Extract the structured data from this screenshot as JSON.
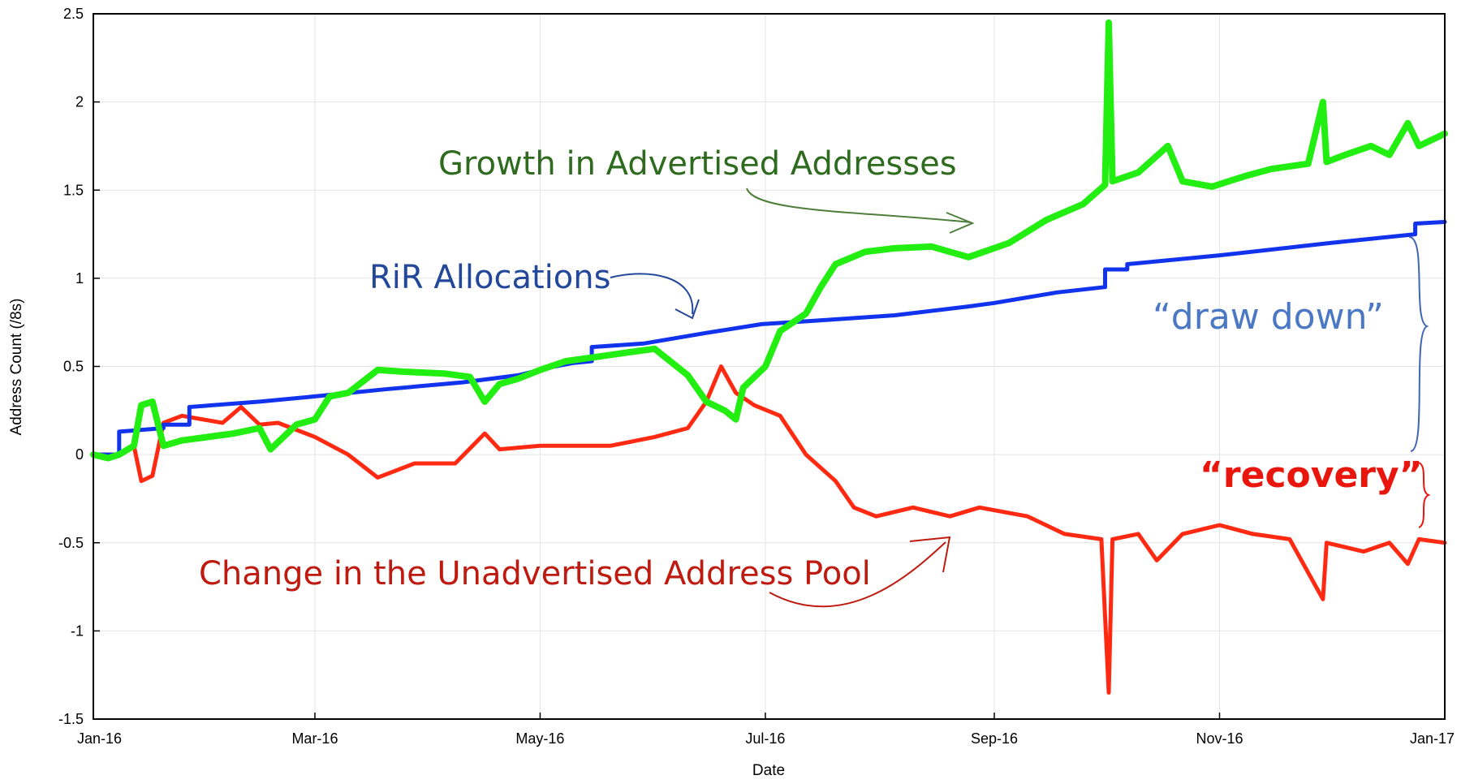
{
  "chart_data": {
    "type": "line",
    "title": "",
    "xlabel": "Date",
    "ylabel": "Address Count (/8s)",
    "x_ticks": [
      "Jan-16",
      "Mar-16",
      "May-16",
      "Jul-16",
      "Sep-16",
      "Nov-16",
      "Jan-17"
    ],
    "y_ticks": [
      "2.5",
      "2",
      "1.5",
      "1",
      "0.5",
      "0",
      "-0.5",
      "-1",
      "-1.5"
    ],
    "ylim": [
      -1.5,
      2.5
    ],
    "xlim": [
      "2016-01-01",
      "2017-01-01"
    ],
    "grid": true,
    "series": [
      {
        "name": "RIR Allocations",
        "color": "#1133ee",
        "points": [
          [
            "2016-01-01",
            0.0
          ],
          [
            "2016-01-08",
            0.0
          ],
          [
            "2016-01-08",
            0.13
          ],
          [
            "2016-01-20",
            0.15
          ],
          [
            "2016-01-20",
            0.17
          ],
          [
            "2016-01-27",
            0.17
          ],
          [
            "2016-01-27",
            0.27
          ],
          [
            "2016-02-15",
            0.3
          ],
          [
            "2016-03-01",
            0.33
          ],
          [
            "2016-03-20",
            0.37
          ],
          [
            "2016-04-10",
            0.41
          ],
          [
            "2016-04-25",
            0.45
          ],
          [
            "2016-05-05",
            0.5
          ],
          [
            "2016-05-10",
            0.52
          ],
          [
            "2016-05-15",
            0.53
          ],
          [
            "2016-05-15",
            0.61
          ],
          [
            "2016-05-29",
            0.63
          ],
          [
            "2016-06-15",
            0.69
          ],
          [
            "2016-06-30",
            0.74
          ],
          [
            "2016-07-15",
            0.76
          ],
          [
            "2016-08-05",
            0.79
          ],
          [
            "2016-08-25",
            0.84
          ],
          [
            "2016-09-01",
            0.86
          ],
          [
            "2016-09-18",
            0.92
          ],
          [
            "2016-10-01",
            0.95
          ],
          [
            "2016-10-01",
            1.05
          ],
          [
            "2016-10-07",
            1.05
          ],
          [
            "2016-10-07",
            1.08
          ],
          [
            "2016-11-01",
            1.13
          ],
          [
            "2016-12-01",
            1.2
          ],
          [
            "2016-12-24",
            1.25
          ],
          [
            "2016-12-24",
            1.31
          ],
          [
            "2017-01-01",
            1.32
          ]
        ]
      },
      {
        "name": "Growth in Advertised Addresses",
        "color": "#22ee11",
        "points": [
          [
            "2016-01-01",
            0.0
          ],
          [
            "2016-01-05",
            -0.02
          ],
          [
            "2016-01-08",
            0.0
          ],
          [
            "2016-01-12",
            0.05
          ],
          [
            "2016-01-14",
            0.28
          ],
          [
            "2016-01-17",
            0.3
          ],
          [
            "2016-01-20",
            0.05
          ],
          [
            "2016-01-25",
            0.08
          ],
          [
            "2016-02-01",
            0.1
          ],
          [
            "2016-02-08",
            0.12
          ],
          [
            "2016-02-15",
            0.15
          ],
          [
            "2016-02-18",
            0.03
          ],
          [
            "2016-02-25",
            0.17
          ],
          [
            "2016-03-01",
            0.2
          ],
          [
            "2016-03-05",
            0.33
          ],
          [
            "2016-03-10",
            0.35
          ],
          [
            "2016-03-18",
            0.48
          ],
          [
            "2016-03-25",
            0.47
          ],
          [
            "2016-04-05",
            0.46
          ],
          [
            "2016-04-12",
            0.44
          ],
          [
            "2016-04-16",
            0.3
          ],
          [
            "2016-04-20",
            0.4
          ],
          [
            "2016-04-25",
            0.43
          ],
          [
            "2016-05-01",
            0.48
          ],
          [
            "2016-05-08",
            0.53
          ],
          [
            "2016-05-15",
            0.55
          ],
          [
            "2016-05-25",
            0.58
          ],
          [
            "2016-06-01",
            0.6
          ],
          [
            "2016-06-10",
            0.45
          ],
          [
            "2016-06-15",
            0.3
          ],
          [
            "2016-06-20",
            0.25
          ],
          [
            "2016-06-23",
            0.2
          ],
          [
            "2016-06-25",
            0.38
          ],
          [
            "2016-07-01",
            0.5
          ],
          [
            "2016-07-05",
            0.7
          ],
          [
            "2016-07-12",
            0.8
          ],
          [
            "2016-07-16",
            0.95
          ],
          [
            "2016-07-20",
            1.08
          ],
          [
            "2016-07-28",
            1.15
          ],
          [
            "2016-08-05",
            1.17
          ],
          [
            "2016-08-15",
            1.18
          ],
          [
            "2016-08-25",
            1.12
          ],
          [
            "2016-09-05",
            1.2
          ],
          [
            "2016-09-15",
            1.33
          ],
          [
            "2016-09-25",
            1.42
          ],
          [
            "2016-10-01",
            1.53
          ],
          [
            "2016-10-02",
            2.45
          ],
          [
            "2016-10-03",
            1.55
          ],
          [
            "2016-10-10",
            1.6
          ],
          [
            "2016-10-18",
            1.75
          ],
          [
            "2016-10-22",
            1.55
          ],
          [
            "2016-10-30",
            1.52
          ],
          [
            "2016-11-08",
            1.58
          ],
          [
            "2016-11-15",
            1.62
          ],
          [
            "2016-11-25",
            1.65
          ],
          [
            "2016-11-29",
            2.0
          ],
          [
            "2016-11-30",
            1.66
          ],
          [
            "2016-12-05",
            1.7
          ],
          [
            "2016-12-12",
            1.75
          ],
          [
            "2016-12-17",
            1.7
          ],
          [
            "2016-12-22",
            1.88
          ],
          [
            "2016-12-25",
            1.75
          ],
          [
            "2017-01-01",
            1.82
          ]
        ]
      },
      {
        "name": "Change in the Unadvertised Address Pool",
        "color": "#ff2a11",
        "points": [
          [
            "2016-01-01",
            0.0
          ],
          [
            "2016-01-08",
            0.0
          ],
          [
            "2016-01-12",
            0.05
          ],
          [
            "2016-01-14",
            -0.15
          ],
          [
            "2016-01-17",
            -0.12
          ],
          [
            "2016-01-20",
            0.18
          ],
          [
            "2016-01-25",
            0.22
          ],
          [
            "2016-02-05",
            0.18
          ],
          [
            "2016-02-10",
            0.27
          ],
          [
            "2016-02-15",
            0.17
          ],
          [
            "2016-02-20",
            0.18
          ],
          [
            "2016-03-01",
            0.1
          ],
          [
            "2016-03-10",
            0.0
          ],
          [
            "2016-03-18",
            -0.13
          ],
          [
            "2016-03-28",
            -0.05
          ],
          [
            "2016-04-08",
            -0.05
          ],
          [
            "2016-04-16",
            0.12
          ],
          [
            "2016-04-20",
            0.03
          ],
          [
            "2016-05-01",
            0.05
          ],
          [
            "2016-05-10",
            0.05
          ],
          [
            "2016-05-20",
            0.05
          ],
          [
            "2016-06-01",
            0.1
          ],
          [
            "2016-06-10",
            0.15
          ],
          [
            "2016-06-15",
            0.3
          ],
          [
            "2016-06-19",
            0.5
          ],
          [
            "2016-06-23",
            0.35
          ],
          [
            "2016-06-28",
            0.28
          ],
          [
            "2016-07-05",
            0.22
          ],
          [
            "2016-07-12",
            0.0
          ],
          [
            "2016-07-20",
            -0.15
          ],
          [
            "2016-07-25",
            -0.3
          ],
          [
            "2016-07-31",
            -0.35
          ],
          [
            "2016-08-10",
            -0.3
          ],
          [
            "2016-08-20",
            -0.35
          ],
          [
            "2016-08-28",
            -0.3
          ],
          [
            "2016-09-10",
            -0.35
          ],
          [
            "2016-09-20",
            -0.45
          ],
          [
            "2016-09-30",
            -0.48
          ],
          [
            "2016-10-02",
            -1.35
          ],
          [
            "2016-10-03",
            -0.48
          ],
          [
            "2016-10-10",
            -0.45
          ],
          [
            "2016-10-15",
            -0.6
          ],
          [
            "2016-10-22",
            -0.45
          ],
          [
            "2016-11-01",
            -0.4
          ],
          [
            "2016-11-10",
            -0.45
          ],
          [
            "2016-11-20",
            -0.48
          ],
          [
            "2016-11-29",
            -0.82
          ],
          [
            "2016-11-30",
            -0.5
          ],
          [
            "2016-12-10",
            -0.55
          ],
          [
            "2016-12-17",
            -0.5
          ],
          [
            "2016-12-22",
            -0.62
          ],
          [
            "2016-12-25",
            -0.48
          ],
          [
            "2017-01-01",
            -0.5
          ]
        ]
      }
    ],
    "annotations": [
      {
        "text": "Growth in Advertised Addresses",
        "color": "#2e6b1f"
      },
      {
        "text": "RiR Allocations",
        "color": "#23489a"
      },
      {
        "text": "“draw down”",
        "color": "#4a78c4"
      },
      {
        "text": "“recovery”",
        "color": "#e8160c"
      },
      {
        "text": "Change in the Unadvertised Address Pool",
        "color": "#bf1a10"
      }
    ]
  }
}
